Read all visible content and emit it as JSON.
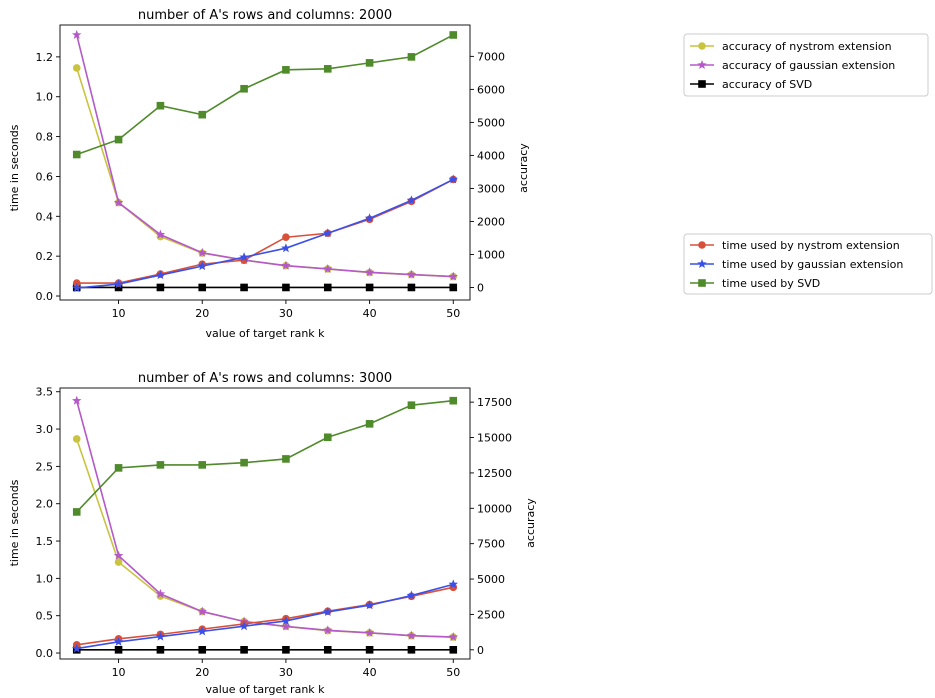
{
  "colors": {
    "nystrom_accuracy": "#c9c340",
    "gaussian_accuracy": "#b559c9",
    "svd_accuracy": "#000000",
    "nystrom_time": "#d9503a",
    "gaussian_time": "#3a50e8",
    "svd_time": "#4f8a2b"
  },
  "legend_accuracy": [
    {
      "label": "accuracy of nystrom extension",
      "color": "#c9c340",
      "marker": "circle"
    },
    {
      "label": "accuracy of gaussian extension",
      "color": "#b559c9",
      "marker": "star"
    },
    {
      "label": "accuracy of SVD",
      "color": "#000000",
      "marker": "square"
    }
  ],
  "legend_time": [
    {
      "label": "time used by nystrom extension",
      "color": "#d9503a",
      "marker": "circle"
    },
    {
      "label": "time used by gaussian extension",
      "color": "#3a50e8",
      "marker": "star"
    },
    {
      "label": "time used by SVD",
      "color": "#4f8a2b",
      "marker": "square"
    }
  ],
  "chart_data": [
    {
      "type": "line",
      "title": "number of A's rows and columns: 2000",
      "xlabel": "value of target rank k",
      "ylabel_left": "time in seconds",
      "ylabel_right": "accuracy",
      "xlim": [
        3,
        52
      ],
      "xticks": [
        10,
        20,
        30,
        40,
        50
      ],
      "ylim_left": [
        -0.02,
        1.36
      ],
      "yticks_left": [
        "0.0",
        "0.2",
        "0.4",
        "0.6",
        "0.8",
        "1.0",
        "1.2"
      ],
      "yticks_left_values": [
        0,
        0.2,
        0.4,
        0.6,
        0.8,
        1.0,
        1.2
      ],
      "ylim_right": [
        -380,
        7950
      ],
      "yticks_right": [
        "0",
        "1000",
        "2000",
        "3000",
        "4000",
        "5000",
        "6000",
        "7000"
      ],
      "yticks_right_values": [
        0,
        1000,
        2000,
        3000,
        4000,
        5000,
        6000,
        7000
      ],
      "x": [
        5,
        10,
        15,
        20,
        25,
        30,
        35,
        40,
        45,
        50
      ],
      "series_right": [
        {
          "name": "accuracy of nystrom extension",
          "color": "#c9c340",
          "marker": "circle",
          "values": [
            6650,
            2570,
            1540,
            1040,
            830,
            660,
            560,
            450,
            390,
            330
          ]
        },
        {
          "name": "accuracy of gaussian extension",
          "color": "#b559c9",
          "marker": "star",
          "values": [
            7650,
            2570,
            1600,
            1050,
            830,
            660,
            560,
            460,
            390,
            330
          ]
        },
        {
          "name": "accuracy of SVD",
          "color": "#000000",
          "marker": "square",
          "values": [
            0,
            0,
            0,
            0,
            0,
            0,
            0,
            0,
            0,
            0
          ]
        }
      ],
      "series_left": [
        {
          "name": "time used by nystrom extension",
          "color": "#d9503a",
          "marker": "circle",
          "values": [
            0.065,
            0.065,
            0.11,
            0.16,
            0.18,
            0.295,
            0.315,
            0.385,
            0.475,
            0.585
          ]
        },
        {
          "name": "time used by gaussian extension",
          "color": "#3a50e8",
          "marker": "star",
          "values": [
            0.04,
            0.06,
            0.105,
            0.15,
            0.195,
            0.24,
            0.315,
            0.39,
            0.48,
            0.585
          ]
        },
        {
          "name": "time used by SVD",
          "color": "#4f8a2b",
          "marker": "square",
          "values": [
            0.71,
            0.785,
            0.955,
            0.91,
            1.04,
            1.135,
            1.14,
            1.17,
            1.2,
            1.31
          ]
        }
      ]
    },
    {
      "type": "line",
      "title": "number of A's rows and columns: 3000",
      "xlabel": "value of target rank k",
      "ylabel_left": "time in seconds",
      "ylabel_right": "accuracy",
      "xlim": [
        3,
        52
      ],
      "xticks": [
        10,
        20,
        30,
        40,
        50
      ],
      "ylim_left": [
        -0.08,
        3.55
      ],
      "yticks_left": [
        "0.0",
        "0.5",
        "1.0",
        "1.5",
        "2.0",
        "2.5",
        "3.0",
        "3.5"
      ],
      "yticks_left_values": [
        0,
        0.5,
        1.0,
        1.5,
        2.0,
        2.5,
        3.0,
        3.5
      ],
      "ylim_right": [
        -650,
        18500
      ],
      "yticks_right": [
        "0",
        "2500",
        "5000",
        "7500",
        "10000",
        "12500",
        "15000",
        "17500"
      ],
      "yticks_right_values": [
        0,
        2500,
        5000,
        7500,
        10000,
        12500,
        15000,
        17500
      ],
      "x": [
        5,
        10,
        15,
        20,
        25,
        30,
        35,
        40,
        45,
        50
      ],
      "series_right": [
        {
          "name": "accuracy of nystrom extension",
          "color": "#c9c340",
          "marker": "circle",
          "values": [
            14900,
            6200,
            3800,
            2700,
            2000,
            1650,
            1350,
            1200,
            1000,
            900
          ]
        },
        {
          "name": "accuracy of gaussian extension",
          "color": "#b559c9",
          "marker": "star",
          "values": [
            17600,
            6650,
            3950,
            2700,
            2000,
            1650,
            1380,
            1200,
            1000,
            900
          ]
        },
        {
          "name": "accuracy of SVD",
          "color": "#000000",
          "marker": "square",
          "values": [
            0,
            0,
            0,
            0,
            0,
            0,
            0,
            0,
            0,
            0
          ]
        }
      ],
      "series_left": [
        {
          "name": "time used by nystrom extension",
          "color": "#d9503a",
          "marker": "circle",
          "values": [
            0.11,
            0.19,
            0.25,
            0.32,
            0.39,
            0.46,
            0.56,
            0.65,
            0.76,
            0.88
          ]
        },
        {
          "name": "time used by gaussian extension",
          "color": "#3a50e8",
          "marker": "star",
          "values": [
            0.06,
            0.15,
            0.22,
            0.29,
            0.36,
            0.43,
            0.55,
            0.64,
            0.77,
            0.92
          ]
        },
        {
          "name": "time used by SVD",
          "color": "#4f8a2b",
          "marker": "square",
          "values": [
            1.89,
            2.48,
            2.52,
            2.52,
            2.55,
            2.6,
            2.89,
            3.07,
            3.32,
            3.38
          ]
        }
      ]
    }
  ]
}
